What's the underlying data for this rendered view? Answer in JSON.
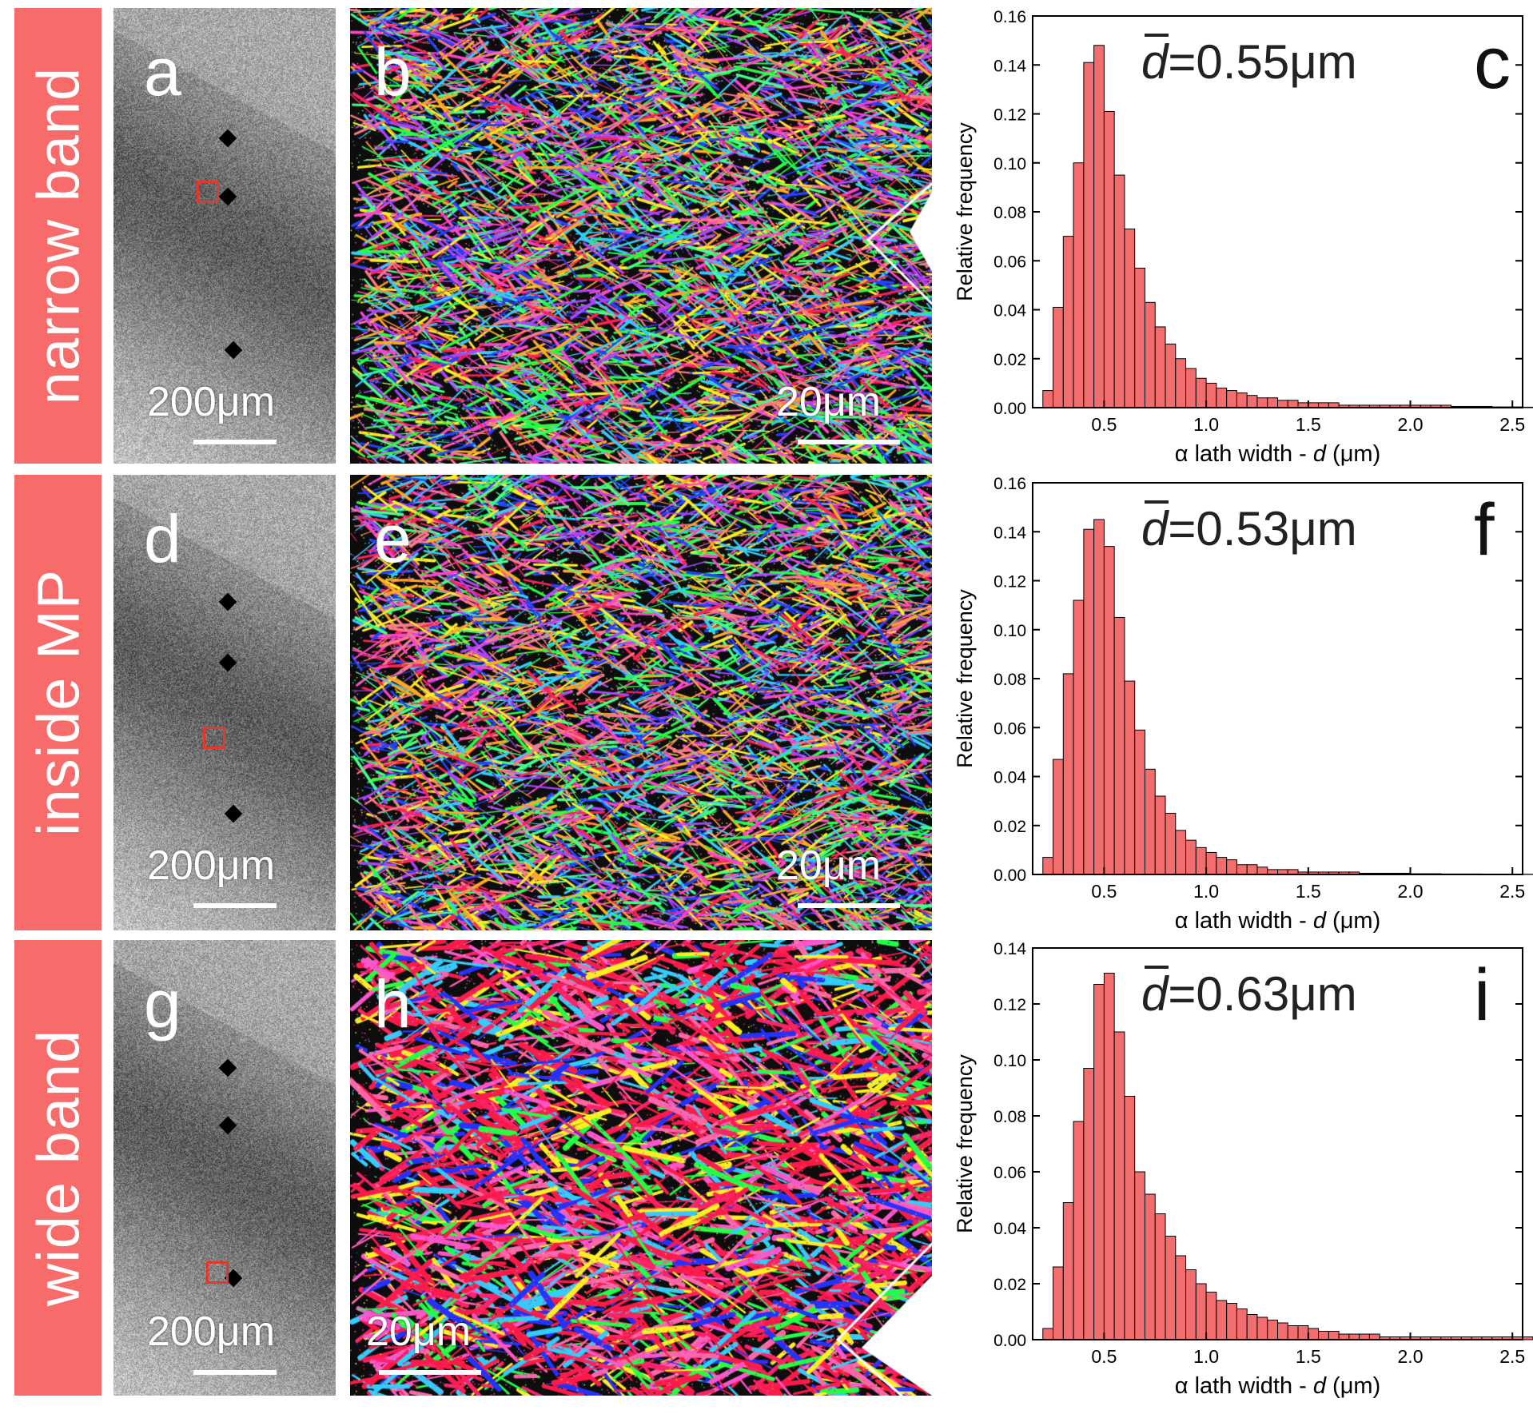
{
  "rows": [
    {
      "band_label": "narrow band",
      "om_letter": "a",
      "ebsd_letter": "b",
      "om_scale": "200μm",
      "ebsd_scale": "20μm",
      "chart": {
        "letter": "c",
        "mean_label": "=0.55μm",
        "mean_symbol": "d",
        "ymax": 0.16,
        "yticks": [
          "0.00",
          "0.02",
          "0.04",
          "0.06",
          "0.08",
          "0.10",
          "0.12",
          "0.14",
          "0.16"
        ]
      }
    },
    {
      "band_label": "inside MP",
      "om_letter": "d",
      "ebsd_letter": "e",
      "om_scale": "200μm",
      "ebsd_scale": "20μm",
      "chart": {
        "letter": "f",
        "mean_label": "=0.53μm",
        "mean_symbol": "d",
        "ymax": 0.16,
        "yticks": [
          "0.00",
          "0.02",
          "0.04",
          "0.06",
          "0.08",
          "0.10",
          "0.12",
          "0.14",
          "0.16"
        ]
      }
    },
    {
      "band_label": "wide band",
      "om_letter": "g",
      "ebsd_letter": "h",
      "om_scale": "200μm",
      "ebsd_scale": "20μm",
      "chart": {
        "letter": "i",
        "mean_label": "=0.63μm",
        "mean_symbol": "d",
        "ymax": 0.14,
        "yticks": [
          "0.00",
          "0.02",
          "0.04",
          "0.06",
          "0.08",
          "0.10",
          "0.12",
          "0.14"
        ]
      }
    }
  ],
  "axis": {
    "ylabel": "Relative frequency",
    "xlabel_prefix": "α lath width - ",
    "xlabel_var": "d",
    "xlabel_unit": " (μm)",
    "xticks": [
      "0.5",
      "1.0",
      "1.5",
      "2.0",
      "2.5"
    ]
  },
  "colors": {
    "bar_fill": "#f26d6d",
    "bar_stroke": "#000000",
    "band_label_bg": "#f86b6b"
  },
  "chart_data": [
    {
      "type": "bar",
      "title": "c",
      "annotation": "d̄=0.55μm",
      "xlabel": "α lath width - d (μm)",
      "ylabel": "Relative frequency",
      "xlim": [
        0.15,
        2.55
      ],
      "ylim": [
        0,
        0.16
      ],
      "bin_width": 0.05,
      "bin_start": 0.2,
      "values": [
        0.007,
        0.041,
        0.07,
        0.1,
        0.141,
        0.148,
        0.121,
        0.095,
        0.073,
        0.057,
        0.043,
        0.033,
        0.026,
        0.02,
        0.016,
        0.012,
        0.01,
        0.008,
        0.007,
        0.006,
        0.005,
        0.004,
        0.004,
        0.003,
        0.003,
        0.002,
        0.002,
        0.002,
        0.002,
        0.001,
        0.001,
        0.001,
        0.001,
        0.001,
        0.001,
        0.001,
        0.001,
        0.001,
        0.001,
        0.001,
        0.0005,
        0.0005,
        0.0005,
        0.0005,
        0.0003,
        0.0003,
        0.0003,
        0.0002
      ]
    },
    {
      "type": "bar",
      "title": "f",
      "annotation": "d̄=0.53μm",
      "xlabel": "α lath width - d (μm)",
      "ylabel": "Relative frequency",
      "xlim": [
        0.15,
        2.55
      ],
      "ylim": [
        0,
        0.16
      ],
      "bin_width": 0.05,
      "bin_start": 0.2,
      "values": [
        0.007,
        0.047,
        0.082,
        0.112,
        0.141,
        0.145,
        0.134,
        0.105,
        0.079,
        0.059,
        0.043,
        0.032,
        0.025,
        0.018,
        0.014,
        0.011,
        0.009,
        0.007,
        0.006,
        0.004,
        0.004,
        0.003,
        0.002,
        0.002,
        0.002,
        0.001,
        0.001,
        0.001,
        0.001,
        0.001,
        0.001,
        0.0005,
        0.0005,
        0.0005,
        0.0005,
        0.0005,
        0.0003,
        0.0003,
        0.0003,
        0.0002,
        0.0002,
        0.0002,
        0.0002,
        0.0001,
        0.0001,
        0.0001,
        0.0001,
        0.0001
      ]
    },
    {
      "type": "bar",
      "title": "i",
      "annotation": "d̄=0.63μm",
      "xlabel": "α lath width - d (μm)",
      "ylabel": "Relative frequency",
      "xlim": [
        0.15,
        2.55
      ],
      "ylim": [
        0,
        0.14
      ],
      "bin_width": 0.05,
      "bin_start": 0.2,
      "values": [
        0.004,
        0.026,
        0.049,
        0.078,
        0.097,
        0.127,
        0.131,
        0.11,
        0.087,
        0.06,
        0.052,
        0.045,
        0.037,
        0.03,
        0.025,
        0.02,
        0.017,
        0.014,
        0.013,
        0.011,
        0.009,
        0.008,
        0.007,
        0.006,
        0.005,
        0.005,
        0.004,
        0.003,
        0.003,
        0.002,
        0.002,
        0.002,
        0.002,
        0.001,
        0.001,
        0.001,
        0.001,
        0.001,
        0.001,
        0.001,
        0.001,
        0.001,
        0.001,
        0.001,
        0.001,
        0.001,
        0.001,
        0.001
      ]
    }
  ]
}
